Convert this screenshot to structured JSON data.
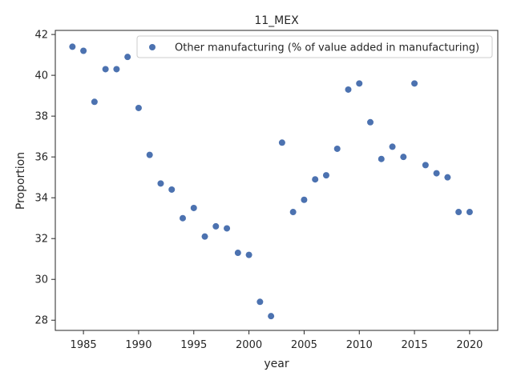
{
  "chart_data": {
    "type": "scatter",
    "title": "11_MEX",
    "xlabel": "year",
    "ylabel": "Proportion",
    "xlim": [
      1982.45,
      1881.55
    ],
    "ylim": [
      27.5,
      42.2
    ],
    "xticks": [
      1985,
      1990,
      1995,
      2000,
      2005,
      2010,
      2015,
      2020
    ],
    "yticks": [
      28,
      30,
      32,
      34,
      36,
      38,
      40,
      42
    ],
    "grid": false,
    "legend_position": "top-right",
    "series": [
      {
        "name": "Other manufacturing (% of value added in manufacturing)",
        "color": "#4c72b0",
        "points": [
          {
            "x": 1984,
            "y": 41.4
          },
          {
            "x": 1985,
            "y": 41.2
          },
          {
            "x": 1986,
            "y": 38.7
          },
          {
            "x": 1987,
            "y": 40.3
          },
          {
            "x": 1988,
            "y": 40.3
          },
          {
            "x": 1989,
            "y": 40.9
          },
          {
            "x": 1990,
            "y": 38.4
          },
          {
            "x": 1991,
            "y": 36.1
          },
          {
            "x": 1992,
            "y": 34.7
          },
          {
            "x": 1993,
            "y": 34.4
          },
          {
            "x": 1994,
            "y": 33.0
          },
          {
            "x": 1995,
            "y": 33.5
          },
          {
            "x": 1996,
            "y": 32.1
          },
          {
            "x": 1997,
            "y": 32.6
          },
          {
            "x": 1998,
            "y": 32.5
          },
          {
            "x": 1999,
            "y": 31.3
          },
          {
            "x": 2000,
            "y": 31.2
          },
          {
            "x": 2001,
            "y": 28.9
          },
          {
            "x": 2002,
            "y": 28.2
          },
          {
            "x": 2003,
            "y": 36.7
          },
          {
            "x": 2004,
            "y": 33.3
          },
          {
            "x": 2005,
            "y": 33.9
          },
          {
            "x": 2006,
            "y": 34.9
          },
          {
            "x": 2007,
            "y": 35.1
          },
          {
            "x": 2008,
            "y": 36.4
          },
          {
            "x": 2009,
            "y": 39.3
          },
          {
            "x": 2010,
            "y": 39.6
          },
          {
            "x": 2011,
            "y": 37.7
          },
          {
            "x": 2012,
            "y": 35.9
          },
          {
            "x": 2013,
            "y": 36.5
          },
          {
            "x": 2014,
            "y": 36.0
          },
          {
            "x": 2015,
            "y": 39.6
          },
          {
            "x": 2016,
            "y": 35.6
          },
          {
            "x": 2017,
            "y": 35.2
          },
          {
            "x": 2018,
            "y": 35.0
          },
          {
            "x": 2019,
            "y": 33.3
          },
          {
            "x": 2020,
            "y": 33.3
          }
        ]
      }
    ]
  }
}
